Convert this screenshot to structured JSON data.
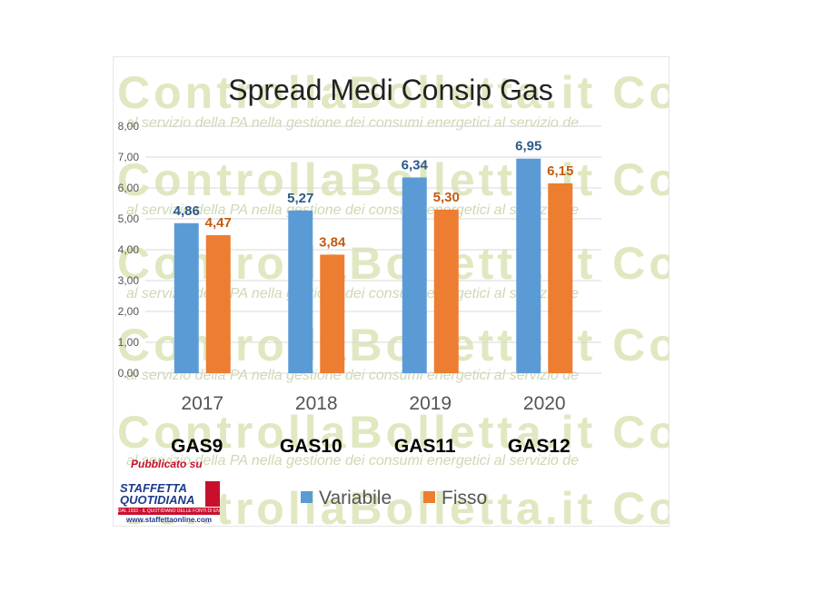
{
  "watermark": {
    "brand_a": "Controlla",
    "brand_b": "Bolletta",
    "brand_c": ".it",
    "brand_line": "ControllaBolletta.it Cont",
    "tagline": "al servizio della PA nella gestione dei consumi energetici   al servizio de"
  },
  "publisher": {
    "label": "Pubblicato su",
    "name_line1": "STAFFETTA",
    "name_line2": "QUOTIDIANA",
    "tagline": "DAL 1933 - IL QUOTIDIANO DELLE FONTI DI ENERGIA",
    "url": "www.staffettaonline.com"
  },
  "colors": {
    "variabile": "#5b9bd5",
    "fisso": "#ed7d31",
    "variabile_label": "#2e5a87",
    "fisso_label": "#c55a11",
    "gridline": "#d9d9d9"
  },
  "chart_data": {
    "type": "bar",
    "title": "Spread Medi Consip Gas",
    "categories": [
      "2017",
      "2018",
      "2019",
      "2020"
    ],
    "category_sublabels": [
      "GAS9",
      "GAS10",
      "GAS11",
      "GAS12"
    ],
    "series": [
      {
        "name": "Variabile",
        "values": [
          4.86,
          5.27,
          6.34,
          6.95
        ],
        "labels": [
          "4,86",
          "5,27",
          "6,34",
          "6,95"
        ]
      },
      {
        "name": "Fisso",
        "values": [
          4.47,
          3.84,
          5.3,
          6.15
        ],
        "labels": [
          "4,47",
          "3,84",
          "5,30",
          "6,15"
        ]
      }
    ],
    "ylim": [
      0,
      8
    ],
    "yticks": [
      "0,00",
      "1,00",
      "2,00",
      "3,00",
      "4,00",
      "5,00",
      "6,00",
      "7,00",
      "8,00"
    ],
    "grid": true,
    "legend": "bottom-center"
  }
}
